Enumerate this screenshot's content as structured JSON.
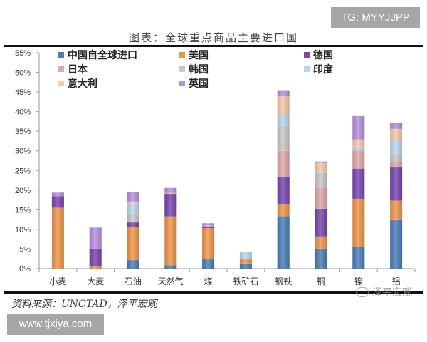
{
  "watermarks": {
    "tg": "TG: MYYJJPP",
    "site": "www.tjxiya.com",
    "wechat": "泽平宏观"
  },
  "chart_data": {
    "type": "bar",
    "stacked": true,
    "title": "图表：全球重点商品主要进口国",
    "source": "资料来源：UNCTAD，泽平宏观",
    "xlabel": "",
    "ylabel": "",
    "ylim": [
      0,
      55
    ],
    "yticks": [
      "0%",
      "5%",
      "10%",
      "15%",
      "20%",
      "25%",
      "30%",
      "35%",
      "40%",
      "45%",
      "50%",
      "55%"
    ],
    "legend_position": "top",
    "grid": false,
    "categories": [
      "小麦",
      "大麦",
      "石油",
      "天然气",
      "煤",
      "铁矿石",
      "钢铁",
      "铜",
      "镍",
      "铝"
    ],
    "series": [
      {
        "name": "中国自全球进口",
        "color": "#4a7eb8",
        "values": [
          0,
          0,
          2.2,
          0.9,
          2.4,
          1.3,
          13.4,
          5.1,
          5.5,
          12.4
        ]
      },
      {
        "name": "美国",
        "color": "#f0954a",
        "values": [
          15.5,
          0.6,
          8.5,
          12.4,
          7.9,
          1.1,
          3.1,
          3.1,
          12.3,
          4.9
        ]
      },
      {
        "name": "德国",
        "color": "#7a46b0",
        "values": [
          3.0,
          4.5,
          1.1,
          5.8,
          0.4,
          0,
          6.8,
          7.1,
          7.7,
          8.5
        ]
      },
      {
        "name": "日本",
        "color": "#e0a8a8",
        "values": [
          0,
          0,
          0.3,
          0.4,
          0.3,
          0,
          6.7,
          5.4,
          4.5,
          1.3
        ]
      },
      {
        "name": "韩国",
        "color": "#c8c8c8",
        "values": [
          0,
          0,
          2.0,
          0,
          0,
          0,
          6.4,
          3.7,
          0.6,
          2.2
        ]
      },
      {
        "name": "印度",
        "color": "#b8d6ee",
        "values": [
          0,
          0,
          2.5,
          0,
          0,
          1.8,
          2.7,
          0,
          0.5,
          3.4
        ]
      },
      {
        "name": "意大利",
        "color": "#f8c8a8",
        "values": [
          0,
          0,
          0.5,
          0,
          0,
          0,
          4.8,
          2.5,
          1.8,
          2.9
        ]
      },
      {
        "name": "英国",
        "color": "#b890e0",
        "values": [
          0.9,
          5.4,
          2.5,
          1.1,
          0.6,
          0,
          1.4,
          0.4,
          6.0,
          1.5
        ]
      }
    ]
  }
}
